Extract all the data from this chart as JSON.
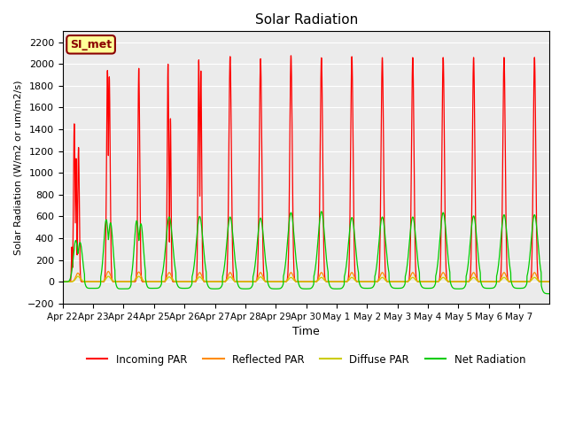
{
  "title": "Solar Radiation",
  "xlabel": "Time",
  "ylabel": "Solar Radiation (W/m2 or um/m2/s)",
  "ylim": [
    -200,
    2300
  ],
  "yticks": [
    -200,
    0,
    200,
    400,
    600,
    800,
    1000,
    1200,
    1400,
    1600,
    1800,
    2000,
    2200
  ],
  "bg_color": "#ebebeb",
  "line_colors": {
    "incoming": "#ff0000",
    "reflected": "#ff8c00",
    "diffuse": "#cccc00",
    "net": "#00cc00"
  },
  "legend_labels": [
    "Incoming PAR",
    "Reflected PAR",
    "Diffuse PAR",
    "Net Radiation"
  ],
  "si_met_label": "SI_met",
  "si_met_bg": "#ffff99",
  "si_met_border": "#8b0000",
  "n_days": 16,
  "peak_incoming": [
    1450,
    1940,
    1960,
    2000,
    2040,
    2070,
    2050,
    2080,
    2060,
    2070,
    2060,
    2060,
    2060,
    2060,
    2060,
    2060
  ],
  "peak_reflected": [
    80,
    95,
    90,
    85,
    85,
    85,
    85,
    85,
    85,
    85,
    85,
    85,
    85,
    85,
    85,
    85
  ],
  "peak_diffuse": [
    50,
    50,
    50,
    45,
    45,
    45,
    45,
    40,
    40,
    40,
    40,
    40,
    40,
    40,
    40,
    40
  ],
  "peak_net": [
    380,
    570,
    560,
    595,
    600,
    595,
    585,
    635,
    645,
    590,
    595,
    595,
    635,
    605,
    615,
    615
  ],
  "night_net": [
    -60,
    -65,
    -60,
    -60,
    -65,
    -65,
    -65,
    -65,
    -65,
    -60,
    -60,
    -60,
    -65,
    -60,
    -60,
    -110
  ],
  "xtick_labels": [
    "Apr 22",
    "Apr 23",
    "Apr 24",
    "Apr 25",
    "Apr 26",
    "Apr 27",
    "Apr 28",
    "Apr 29",
    "Apr 30",
    "May 1",
    "May 2",
    "May 3",
    "May 4",
    "May 5",
    "May 6",
    "May 7"
  ]
}
